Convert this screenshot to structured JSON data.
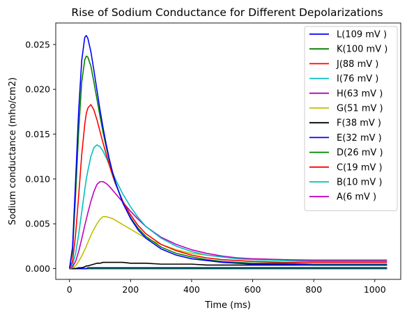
{
  "chart_data": {
    "type": "line",
    "title": "Rise of Sodium Conductance for Different Depolarizations",
    "xlabel": "Time (ms)",
    "ylabel": "Sodium conductance (mho/cm2)",
    "xlim": [
      -45,
      1085
    ],
    "ylim": [
      -0.0012,
      0.0274
    ],
    "xticks": [
      0,
      200,
      400,
      600,
      800,
      1000
    ],
    "xtick_labels": [
      "0",
      "200",
      "400",
      "600",
      "800",
      "1000"
    ],
    "yticks": [
      0.0,
      0.005,
      0.01,
      0.015,
      0.02,
      0.025
    ],
    "ytick_labels": [
      "0.000",
      "0.005",
      "0.010",
      "0.015",
      "0.020",
      "0.025"
    ],
    "grid": false,
    "legend_position": "top-right",
    "x": [
      0,
      10,
      20,
      30,
      40,
      50,
      55,
      60,
      70,
      80,
      90,
      100,
      110,
      120,
      130,
      140,
      150,
      175,
      200,
      225,
      250,
      300,
      350,
      400,
      450,
      500,
      550,
      600,
      700,
      800,
      900,
      1040
    ],
    "series": [
      {
        "name": "L(109 mV )",
        "color": "#0000ff",
        "values": [
          0.0,
          0.0024,
          0.0098,
          0.0176,
          0.0232,
          0.0258,
          0.026,
          0.0257,
          0.0242,
          0.0221,
          0.0199,
          0.0177,
          0.0157,
          0.0139,
          0.0123,
          0.0109,
          0.0097,
          0.0073,
          0.0056,
          0.0043,
          0.0034,
          0.0022,
          0.0015,
          0.0011,
          0.0009,
          0.0007,
          0.0006,
          0.0005,
          0.0005,
          0.0004,
          0.0004,
          0.0004
        ]
      },
      {
        "name": "K(100 mV )",
        "color": "#008000",
        "values": [
          0.0,
          0.0019,
          0.0082,
          0.0153,
          0.0208,
          0.0233,
          0.0237,
          0.0236,
          0.0226,
          0.0208,
          0.0189,
          0.017,
          0.0152,
          0.0136,
          0.0121,
          0.0108,
          0.0096,
          0.0073,
          0.0057,
          0.0045,
          0.0036,
          0.0024,
          0.0017,
          0.0013,
          0.001,
          0.0008,
          0.0007,
          0.0006,
          0.0006,
          0.0005,
          0.0005,
          0.0005
        ]
      },
      {
        "name": "J(88 mV )",
        "color": "#ff0000",
        "values": [
          0.0,
          0.0008,
          0.0038,
          0.0081,
          0.0127,
          0.0161,
          0.0173,
          0.0179,
          0.0183,
          0.0177,
          0.0166,
          0.0153,
          0.014,
          0.0128,
          0.0116,
          0.0105,
          0.0095,
          0.0075,
          0.006,
          0.0048,
          0.0039,
          0.0027,
          0.002,
          0.0015,
          0.0012,
          0.001,
          0.0009,
          0.0008,
          0.0007,
          0.0007,
          0.0007,
          0.0007
        ]
      },
      {
        "name": "I(76 mV )",
        "color": "#00bfbf",
        "values": [
          0.0,
          0.0004,
          0.0017,
          0.0038,
          0.0063,
          0.0088,
          0.01,
          0.0109,
          0.0125,
          0.0135,
          0.0138,
          0.0136,
          0.0131,
          0.0124,
          0.0116,
          0.0108,
          0.01,
          0.0083,
          0.0069,
          0.0057,
          0.0047,
          0.0034,
          0.0025,
          0.0019,
          0.0015,
          0.0013,
          0.0011,
          0.001,
          0.0009,
          0.0008,
          0.0008,
          0.0008
        ]
      },
      {
        "name": "H(63 mV )",
        "color": "#bf00bf",
        "values": [
          0.0,
          0.0002,
          0.0008,
          0.0019,
          0.0033,
          0.0048,
          0.0055,
          0.0062,
          0.0075,
          0.0086,
          0.0094,
          0.0097,
          0.0097,
          0.0095,
          0.0092,
          0.0088,
          0.0084,
          0.0074,
          0.0064,
          0.0055,
          0.0047,
          0.0035,
          0.0027,
          0.0021,
          0.0017,
          0.0014,
          0.0012,
          0.0011,
          0.001,
          0.0009,
          0.0009,
          0.0009
        ]
      },
      {
        "name": "G(51 mV )",
        "color": "#bfbf00",
        "values": [
          0.0,
          0.0001,
          0.0003,
          0.0008,
          0.0014,
          0.0021,
          0.0025,
          0.0029,
          0.0037,
          0.0044,
          0.005,
          0.0055,
          0.0058,
          0.0058,
          0.0057,
          0.0056,
          0.0054,
          0.0049,
          0.0044,
          0.0039,
          0.0034,
          0.0027,
          0.0021,
          0.0017,
          0.0015,
          0.0013,
          0.0012,
          0.0011,
          0.001,
          0.001,
          0.001,
          0.001
        ]
      },
      {
        "name": "F(38 mV )",
        "color": "#000000",
        "values": [
          0.0,
          0.0,
          0.0,
          0.0001,
          0.0001,
          0.0002,
          0.0003,
          0.0003,
          0.0004,
          0.0005,
          0.0006,
          0.0006,
          0.0007,
          0.0007,
          0.0007,
          0.0007,
          0.0007,
          0.0007,
          0.0006,
          0.0006,
          0.0006,
          0.0005,
          0.0005,
          0.0005,
          0.0004,
          0.0004,
          0.0004,
          0.0004,
          0.0004,
          0.0004,
          0.0004,
          0.0004
        ]
      },
      {
        "name": "E(32 mV )",
        "color": "#0000ff",
        "values": [
          0.0,
          0.0,
          0.0,
          0.0,
          0.0,
          0.0,
          0.0,
          0.0001,
          0.0001,
          0.0001,
          0.0001,
          0.0001,
          0.0001,
          0.0001,
          0.0001,
          0.0001,
          0.0001,
          0.0001,
          0.0001,
          0.0001,
          0.0001,
          0.0001,
          0.0001,
          0.0001,
          0.0001,
          0.0001,
          0.0001,
          0.0001,
          0.0001,
          0.0001,
          0.0001,
          0.0001
        ]
      },
      {
        "name": "D(26 mV )",
        "color": "#008000",
        "values": [
          0.0,
          0.0,
          0.0,
          0.0,
          0.0,
          0.0,
          0.0,
          0.0,
          0.0,
          0.0,
          0.0,
          0.0,
          0.0,
          0.0,
          0.0,
          0.0,
          0.0,
          0.0,
          0.0,
          0.0,
          0.0,
          0.0,
          0.0,
          0.0,
          0.0,
          0.0,
          0.0,
          0.0,
          0.0,
          0.0,
          0.0,
          0.0
        ]
      },
      {
        "name": "C(19 mV )",
        "color": "#ff0000",
        "values": [
          0.0,
          0.0,
          0.0,
          0.0,
          0.0,
          0.0,
          0.0,
          0.0,
          0.0,
          0.0,
          0.0,
          0.0,
          0.0,
          0.0,
          0.0,
          0.0,
          0.0,
          0.0,
          0.0,
          0.0,
          0.0,
          0.0,
          0.0,
          0.0,
          0.0,
          0.0,
          0.0,
          0.0,
          0.0,
          0.0,
          0.0,
          0.0
        ]
      },
      {
        "name": "B(10 mV )",
        "color": "#00bfbf",
        "values": [
          0.0,
          0.0,
          0.0,
          0.0,
          0.0,
          0.0,
          0.0,
          0.0,
          0.0,
          0.0,
          0.0,
          0.0,
          0.0,
          0.0,
          0.0,
          0.0,
          0.0,
          0.0,
          0.0,
          0.0,
          0.0,
          0.0,
          0.0,
          0.0,
          0.0,
          0.0,
          0.0,
          0.0,
          0.0,
          0.0,
          0.0,
          0.0
        ]
      },
      {
        "name": "A(6 mV )",
        "color": "#bf00bf",
        "values": [
          0.0,
          0.0,
          0.0,
          0.0,
          0.0,
          0.0,
          0.0,
          0.0,
          0.0,
          0.0,
          0.0,
          0.0,
          0.0,
          0.0,
          0.0,
          0.0,
          0.0,
          0.0,
          0.0,
          0.0,
          0.0,
          0.0,
          0.0,
          0.0,
          0.0,
          0.0,
          0.0,
          0.0,
          0.0,
          0.0,
          0.0,
          0.0
        ]
      }
    ]
  }
}
